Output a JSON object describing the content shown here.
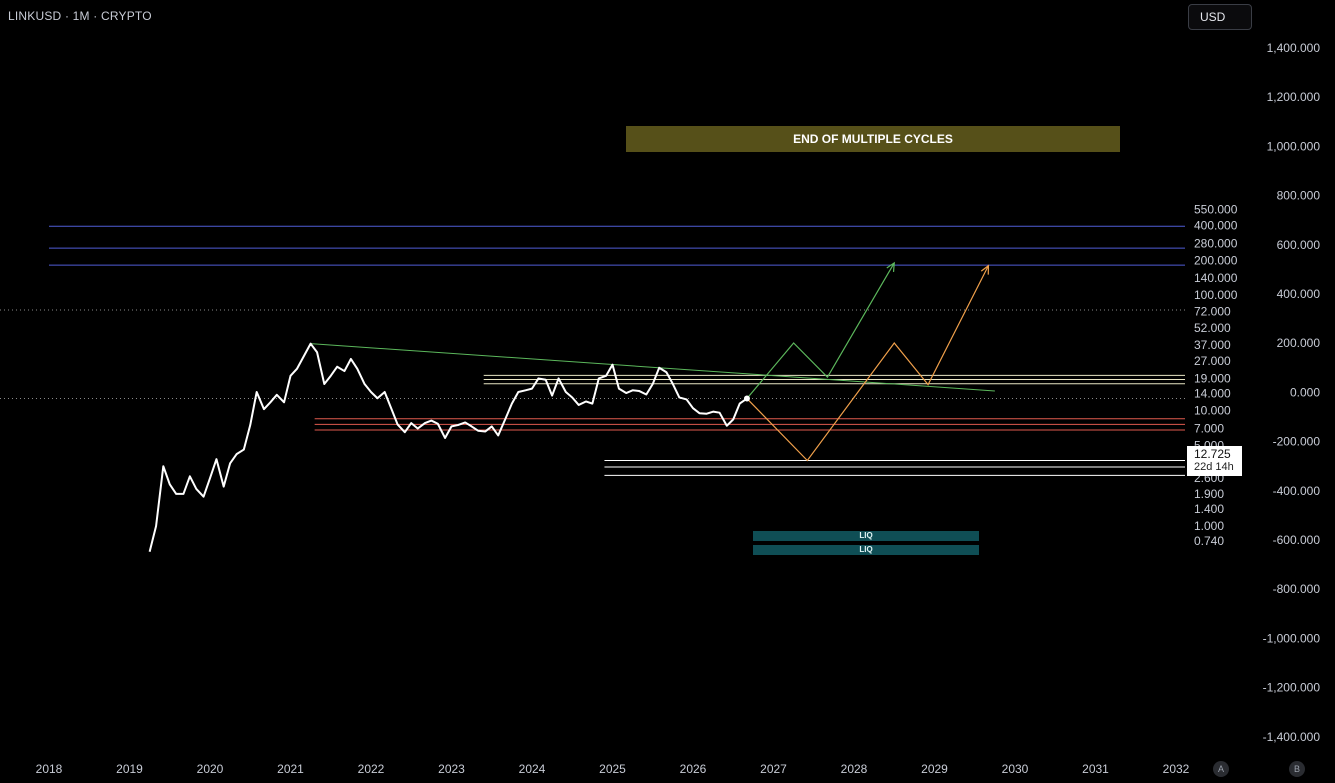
{
  "header": {
    "symbol_title": "LINKUSD · 1M · CRYPTO",
    "currency": "USD"
  },
  "price_tag": {
    "price": "12.725",
    "countdown": "22d 14h"
  },
  "annotations": {
    "banner": "END OF MULTIPLE CYCLES",
    "liq_top": "LIQ",
    "liq_bottom": "LIQ"
  },
  "axis_buttons": {
    "a": "A",
    "b": "B"
  },
  "chart_data": {
    "type": "line",
    "title": "LINKUSD · 1M · CRYPTO",
    "x_scale": "time",
    "xlim": [
      2017.9,
      2032.0
    ],
    "y_scale": "log",
    "ylim": [
      0.7,
      700
    ],
    "x_ticks": [
      "2018",
      "2019",
      "2020",
      "2021",
      "2022",
      "2023",
      "2024",
      "2025",
      "2026",
      "2027",
      "2028",
      "2029",
      "2030",
      "2031",
      "2032"
    ],
    "y_ticks_left": [
      "550.000",
      "400.000",
      "280.000",
      "200.000",
      "140.000",
      "100.000",
      "72.000",
      "52.000",
      "37.000",
      "27.000",
      "19.000",
      "14.000",
      "10.000",
      "7.000",
      "5.000",
      "3.600",
      "2.600",
      "1.900",
      "1.400",
      "1.000",
      "0.740"
    ],
    "y_ticks_left_values": [
      550,
      400,
      280,
      200,
      140,
      100,
      72,
      52,
      37,
      27,
      19,
      14,
      10,
      7,
      5,
      3.6,
      2.6,
      1.9,
      1.4,
      1.0,
      0.74
    ],
    "y_ticks_right": [
      "1,400.000",
      "1,200.000",
      "1,000.000",
      "800.000",
      "600.000",
      "400.000",
      "200.000",
      "0.000",
      "-200.000",
      "-400.000",
      "-600.000",
      "-800.000",
      "-1,000.000",
      "-1,200.000",
      "-1,400.000"
    ],
    "last_price": 12.725,
    "series": [
      {
        "color": "#ffffff",
        "points": [
          [
            2019.25,
            0.6
          ],
          [
            2019.33,
            1.0
          ],
          [
            2019.42,
            3.3
          ],
          [
            2019.5,
            2.3
          ],
          [
            2019.58,
            1.9
          ],
          [
            2019.67,
            1.9
          ],
          [
            2019.75,
            2.7
          ],
          [
            2019.83,
            2.1
          ],
          [
            2019.92,
            1.8
          ],
          [
            2020.0,
            2.6
          ],
          [
            2020.08,
            3.8
          ],
          [
            2020.17,
            2.2
          ],
          [
            2020.25,
            3.5
          ],
          [
            2020.33,
            4.2
          ],
          [
            2020.42,
            4.6
          ],
          [
            2020.5,
            7.5
          ],
          [
            2020.58,
            14.5
          ],
          [
            2020.67,
            10.3
          ],
          [
            2020.75,
            11.8
          ],
          [
            2020.83,
            13.7
          ],
          [
            2020.92,
            11.8
          ],
          [
            2021.0,
            20.0
          ],
          [
            2021.08,
            23.0
          ],
          [
            2021.17,
            30.0
          ],
          [
            2021.25,
            38.0
          ],
          [
            2021.33,
            32.0
          ],
          [
            2021.42,
            17.0
          ],
          [
            2021.5,
            20.0
          ],
          [
            2021.58,
            24.0
          ],
          [
            2021.67,
            22.0
          ],
          [
            2021.75,
            28.0
          ],
          [
            2021.83,
            23.0
          ],
          [
            2021.92,
            17.0
          ],
          [
            2022.0,
            14.5
          ],
          [
            2022.08,
            12.8
          ],
          [
            2022.17,
            14.5
          ],
          [
            2022.25,
            10.5
          ],
          [
            2022.33,
            7.6
          ],
          [
            2022.42,
            6.5
          ],
          [
            2022.5,
            7.8
          ],
          [
            2022.58,
            7.0
          ],
          [
            2022.67,
            7.8
          ],
          [
            2022.75,
            8.2
          ],
          [
            2022.83,
            7.7
          ],
          [
            2022.92,
            5.8
          ],
          [
            2023.0,
            7.3
          ],
          [
            2023.08,
            7.5
          ],
          [
            2023.17,
            7.9
          ],
          [
            2023.25,
            7.3
          ],
          [
            2023.33,
            6.7
          ],
          [
            2023.42,
            6.6
          ],
          [
            2023.5,
            7.3
          ],
          [
            2023.58,
            6.1
          ],
          [
            2023.67,
            8.5
          ],
          [
            2023.75,
            11.5
          ],
          [
            2023.83,
            14.5
          ],
          [
            2023.92,
            15.0
          ],
          [
            2024.0,
            15.5
          ],
          [
            2024.08,
            19.0
          ],
          [
            2024.17,
            18.5
          ],
          [
            2024.25,
            13.5
          ],
          [
            2024.33,
            19.0
          ],
          [
            2024.42,
            14.5
          ],
          [
            2024.5,
            13.0
          ],
          [
            2024.58,
            11.2
          ],
          [
            2024.67,
            12.0
          ],
          [
            2024.75,
            11.5
          ],
          [
            2024.83,
            19.0
          ],
          [
            2024.92,
            20.0
          ],
          [
            2025.0,
            25.0
          ],
          [
            2025.08,
            15.5
          ],
          [
            2025.17,
            14.2
          ],
          [
            2025.25,
            15.0
          ],
          [
            2025.33,
            14.8
          ],
          [
            2025.42,
            13.8
          ],
          [
            2025.5,
            17.0
          ],
          [
            2025.58,
            23.5
          ],
          [
            2025.67,
            21.5
          ],
          [
            2025.75,
            17.0
          ],
          [
            2025.83,
            13.0
          ],
          [
            2025.92,
            12.5
          ],
          [
            2026.0,
            10.5
          ],
          [
            2026.08,
            9.5
          ],
          [
            2026.17,
            9.4
          ],
          [
            2026.25,
            9.8
          ],
          [
            2026.33,
            9.6
          ],
          [
            2026.42,
            7.4
          ],
          [
            2026.5,
            8.4
          ],
          [
            2026.58,
            11.5
          ],
          [
            2026.67,
            12.725
          ]
        ]
      }
    ],
    "horizontal_levels": [
      {
        "color": "#4f5dd6",
        "y": 395,
        "x_from": 2018.0,
        "x_to": 2032.0
      },
      {
        "color": "#4f5dd6",
        "y": 255,
        "x_from": 2018.0,
        "x_to": 2032.0
      },
      {
        "color": "#4f5dd6",
        "y": 182,
        "x_from": 2018.0,
        "x_to": 2032.0
      },
      {
        "color": "#e8e6c4",
        "y": 20.2,
        "x_from": 2023.4,
        "x_to": 2032.0
      },
      {
        "color": "#e8e6c4",
        "y": 18.6,
        "x_from": 2023.4,
        "x_to": 2032.0
      },
      {
        "color": "#e8e6c4",
        "y": 17.1,
        "x_from": 2023.4,
        "x_to": 2032.0
      },
      {
        "color": "#e05a4e",
        "y": 8.5,
        "x_from": 2021.3,
        "x_to": 2032.0
      },
      {
        "color": "#e05a4e",
        "y": 7.6,
        "x_from": 2021.3,
        "x_to": 2032.0
      },
      {
        "color": "#e05a4e",
        "y": 6.8,
        "x_from": 2021.3,
        "x_to": 2032.0
      },
      {
        "color": "#ffffff",
        "y": 3.7,
        "x_from": 2024.9,
        "x_to": 2032.0
      },
      {
        "color": "#ffffff",
        "y": 3.25,
        "x_from": 2024.9,
        "x_to": 2032.0
      },
      {
        "color": "#ffffff",
        "y": 2.75,
        "x_from": 2024.9,
        "x_to": 2032.0
      }
    ],
    "trendline": {
      "color": "#5cb85c",
      "from": [
        2021.25,
        38.0
      ],
      "to": [
        2029.75,
        14.8
      ]
    },
    "projection_green": {
      "color": "#5cb85c",
      "points": [
        [
          2026.67,
          12.725
        ],
        [
          2027.25,
          38.5
        ],
        [
          2027.67,
          19.5
        ],
        [
          2028.5,
          190
        ]
      ]
    },
    "projection_orange": {
      "color": "#f0a04b",
      "points": [
        [
          2026.67,
          12.725
        ],
        [
          2027.42,
          3.7
        ],
        [
          2028.5,
          38.5
        ],
        [
          2028.92,
          16.8
        ],
        [
          2029.67,
          180
        ]
      ]
    },
    "colors": {
      "background": "#000000",
      "price_line": "#ffffff",
      "banner": "#565019",
      "liq_zone": "#0f4e55"
    }
  }
}
